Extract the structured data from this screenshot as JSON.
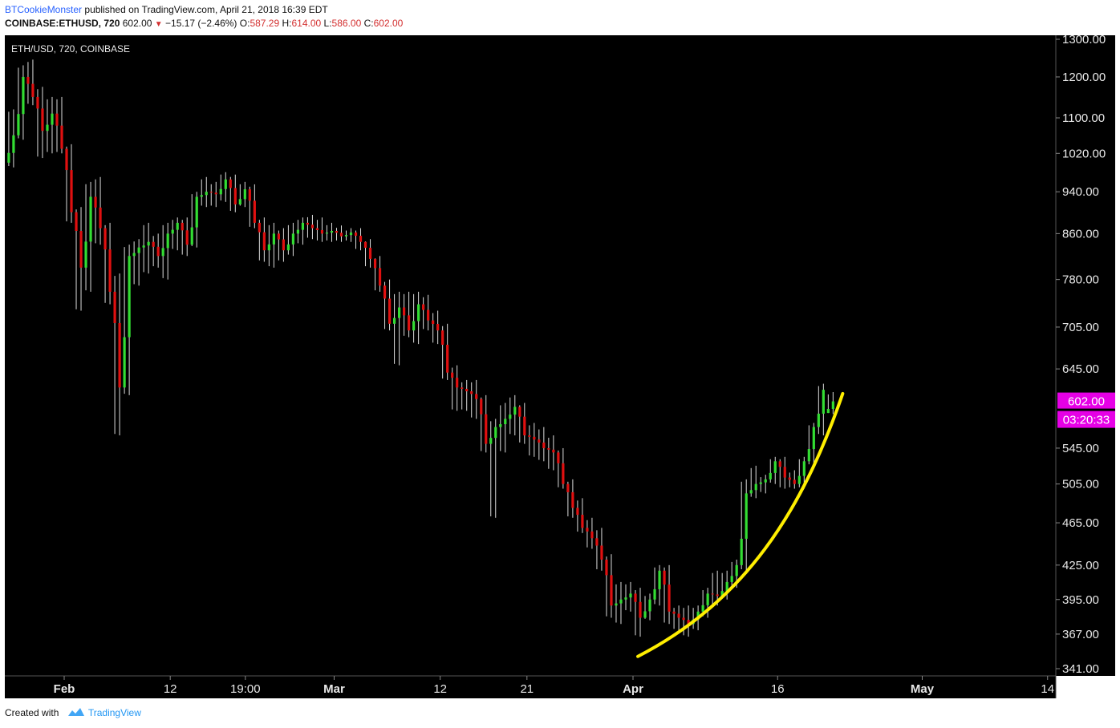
{
  "header": {
    "author": "BTCookieMonster",
    "published": "published on TradingView.com, April 21, 2018 16:39 EDT",
    "symbol": "COINBASE:ETHUSD, 720",
    "last": "602.00",
    "change": "−15.17 (−2.46%)",
    "o_label": "O:",
    "o": "587.29",
    "h_label": "H:",
    "h": "614.00",
    "l_label": "L:",
    "l": "586.00",
    "c_label": "C:",
    "c": "602.00"
  },
  "footer": {
    "created_with": "Created with",
    "brand": "TradingView"
  },
  "colors": {
    "background": "#000000",
    "up": "#33dd33",
    "down": "#e01010",
    "wick": "#dddddd",
    "trendline": "#ffee00",
    "price_tag": "#e600e6"
  },
  "chart_data": {
    "type": "candlestick",
    "title": "ETH/USD, 720, COINBASE",
    "y_scale": "log",
    "y_ticks": [
      "1300.00",
      "1200.00",
      "1100.00",
      "1020.00",
      "940.00",
      "860.00",
      "780.00",
      "705.00",
      "645.00",
      "545.00",
      "505.00",
      "465.00",
      "425.00",
      "395.00",
      "367.00",
      "341.00"
    ],
    "x_ticks": [
      {
        "label": "Feb",
        "date": "2018-02-01"
      },
      {
        "label": "12",
        "date": "2018-02-12"
      },
      {
        "label": "19:00",
        "date": "2018-02-19T19:00"
      },
      {
        "label": "Mar",
        "date": "2018-03-01"
      },
      {
        "label": "12",
        "date": "2018-03-12"
      },
      {
        "label": "21",
        "date": "2018-03-21"
      },
      {
        "label": "Apr",
        "date": "2018-04-01"
      },
      {
        "label": "16",
        "date": "2018-04-16"
      },
      {
        "label": "May",
        "date": "2018-05-01"
      },
      {
        "label": "14",
        "date": "2018-05-14"
      }
    ],
    "last_price_label": "602.00",
    "countdown_label": "03:20:33",
    "grid": false,
    "ohlc": [
      {
        "d": "2018-01-26",
        "o": 1000,
        "h": 1120,
        "l": 990,
        "c": 1060
      },
      {
        "d": "2018-01-27",
        "o": 1060,
        "h": 1230,
        "l": 1050,
        "c": 1200
      },
      {
        "d": "2018-01-28",
        "o": 1200,
        "h": 1245,
        "l": 1130,
        "c": 1150
      },
      {
        "d": "2018-01-29",
        "o": 1150,
        "h": 1175,
        "l": 1010,
        "c": 1070
      },
      {
        "d": "2018-01-30",
        "o": 1070,
        "h": 1150,
        "l": 1020,
        "c": 1110
      },
      {
        "d": "2018-01-31",
        "o": 1110,
        "h": 1150,
        "l": 1020,
        "c": 1030
      },
      {
        "d": "2018-02-01",
        "o": 1030,
        "h": 1040,
        "l": 880,
        "c": 900
      },
      {
        "d": "2018-02-02",
        "o": 900,
        "h": 910,
        "l": 730,
        "c": 800
      },
      {
        "d": "2018-02-03",
        "o": 800,
        "h": 960,
        "l": 760,
        "c": 930
      },
      {
        "d": "2018-02-04",
        "o": 930,
        "h": 970,
        "l": 840,
        "c": 870
      },
      {
        "d": "2018-02-05",
        "o": 870,
        "h": 880,
        "l": 740,
        "c": 760
      },
      {
        "d": "2018-02-06",
        "o": 760,
        "h": 790,
        "l": 560,
        "c": 620
      },
      {
        "d": "2018-02-07",
        "o": 620,
        "h": 840,
        "l": 610,
        "c": 820
      },
      {
        "d": "2018-02-08",
        "o": 820,
        "h": 850,
        "l": 770,
        "c": 835
      },
      {
        "d": "2018-02-09",
        "o": 835,
        "h": 880,
        "l": 790,
        "c": 845
      },
      {
        "d": "2018-02-10",
        "o": 845,
        "h": 860,
        "l": 800,
        "c": 820
      },
      {
        "d": "2018-02-11",
        "o": 820,
        "h": 880,
        "l": 780,
        "c": 860
      },
      {
        "d": "2018-02-12",
        "o": 860,
        "h": 890,
        "l": 830,
        "c": 880
      },
      {
        "d": "2018-02-13",
        "o": 880,
        "h": 890,
        "l": 820,
        "c": 840
      },
      {
        "d": "2018-02-14",
        "o": 840,
        "h": 940,
        "l": 835,
        "c": 930
      },
      {
        "d": "2018-02-15",
        "o": 930,
        "h": 970,
        "l": 910,
        "c": 940
      },
      {
        "d": "2018-02-16",
        "o": 940,
        "h": 960,
        "l": 910,
        "c": 935
      },
      {
        "d": "2018-02-17",
        "o": 935,
        "h": 980,
        "l": 920,
        "c": 965
      },
      {
        "d": "2018-02-18",
        "o": 965,
        "h": 975,
        "l": 900,
        "c": 915
      },
      {
        "d": "2018-02-19",
        "o": 915,
        "h": 960,
        "l": 910,
        "c": 945
      },
      {
        "d": "2018-02-20",
        "o": 945,
        "h": 955,
        "l": 870,
        "c": 880
      },
      {
        "d": "2018-02-21",
        "o": 880,
        "h": 890,
        "l": 810,
        "c": 830
      },
      {
        "d": "2018-02-22",
        "o": 830,
        "h": 880,
        "l": 800,
        "c": 860
      },
      {
        "d": "2018-02-23",
        "o": 860,
        "h": 870,
        "l": 810,
        "c": 830
      },
      {
        "d": "2018-02-24",
        "o": 830,
        "h": 880,
        "l": 820,
        "c": 860
      },
      {
        "d": "2018-02-25",
        "o": 860,
        "h": 890,
        "l": 840,
        "c": 880
      },
      {
        "d": "2018-02-26",
        "o": 880,
        "h": 895,
        "l": 850,
        "c": 870
      },
      {
        "d": "2018-02-27",
        "o": 870,
        "h": 890,
        "l": 845,
        "c": 860
      },
      {
        "d": "2018-02-28",
        "o": 860,
        "h": 880,
        "l": 845,
        "c": 865
      },
      {
        "d": "2018-03-01",
        "o": 865,
        "h": 875,
        "l": 845,
        "c": 855
      },
      {
        "d": "2018-03-02",
        "o": 855,
        "h": 870,
        "l": 845,
        "c": 862
      },
      {
        "d": "2018-03-03",
        "o": 862,
        "h": 870,
        "l": 830,
        "c": 845
      },
      {
        "d": "2018-03-04",
        "o": 845,
        "h": 850,
        "l": 800,
        "c": 815
      },
      {
        "d": "2018-03-05",
        "o": 815,
        "h": 820,
        "l": 760,
        "c": 770
      },
      {
        "d": "2018-03-06",
        "o": 770,
        "h": 780,
        "l": 700,
        "c": 710
      },
      {
        "d": "2018-03-07",
        "o": 710,
        "h": 760,
        "l": 650,
        "c": 735
      },
      {
        "d": "2018-03-08",
        "o": 735,
        "h": 760,
        "l": 690,
        "c": 700
      },
      {
        "d": "2018-03-09",
        "o": 700,
        "h": 760,
        "l": 680,
        "c": 740
      },
      {
        "d": "2018-03-10",
        "o": 740,
        "h": 755,
        "l": 700,
        "c": 715
      },
      {
        "d": "2018-03-11",
        "o": 715,
        "h": 730,
        "l": 680,
        "c": 700
      },
      {
        "d": "2018-03-12",
        "o": 700,
        "h": 710,
        "l": 630,
        "c": 640
      },
      {
        "d": "2018-03-13",
        "o": 640,
        "h": 650,
        "l": 590,
        "c": 620
      },
      {
        "d": "2018-03-14",
        "o": 620,
        "h": 630,
        "l": 590,
        "c": 615
      },
      {
        "d": "2018-03-15",
        "o": 615,
        "h": 630,
        "l": 580,
        "c": 605
      },
      {
        "d": "2018-03-16",
        "o": 605,
        "h": 610,
        "l": 540,
        "c": 550
      },
      {
        "d": "2018-03-17",
        "o": 550,
        "h": 580,
        "l": 470,
        "c": 570
      },
      {
        "d": "2018-03-18",
        "o": 570,
        "h": 600,
        "l": 540,
        "c": 580
      },
      {
        "d": "2018-03-19",
        "o": 580,
        "h": 610,
        "l": 560,
        "c": 595
      },
      {
        "d": "2018-03-20",
        "o": 595,
        "h": 600,
        "l": 550,
        "c": 560
      },
      {
        "d": "2018-03-21",
        "o": 560,
        "h": 575,
        "l": 535,
        "c": 555
      },
      {
        "d": "2018-03-22",
        "o": 555,
        "h": 570,
        "l": 530,
        "c": 545
      },
      {
        "d": "2018-03-23",
        "o": 545,
        "h": 560,
        "l": 520,
        "c": 540
      },
      {
        "d": "2018-03-24",
        "o": 540,
        "h": 545,
        "l": 500,
        "c": 505
      },
      {
        "d": "2018-03-25",
        "o": 505,
        "h": 510,
        "l": 470,
        "c": 480
      },
      {
        "d": "2018-03-26",
        "o": 480,
        "h": 490,
        "l": 455,
        "c": 460
      },
      {
        "d": "2018-03-27",
        "o": 460,
        "h": 470,
        "l": 440,
        "c": 450
      },
      {
        "d": "2018-03-28",
        "o": 450,
        "h": 460,
        "l": 420,
        "c": 430
      },
      {
        "d": "2018-03-29",
        "o": 430,
        "h": 435,
        "l": 380,
        "c": 390
      },
      {
        "d": "2018-03-30",
        "o": 390,
        "h": 410,
        "l": 375,
        "c": 395
      },
      {
        "d": "2018-03-31",
        "o": 395,
        "h": 410,
        "l": 385,
        "c": 400
      },
      {
        "d": "2018-04-01",
        "o": 400,
        "h": 405,
        "l": 365,
        "c": 380
      },
      {
        "d": "2018-04-02",
        "o": 380,
        "h": 400,
        "l": 378,
        "c": 395
      },
      {
        "d": "2018-04-03",
        "o": 395,
        "h": 425,
        "l": 390,
        "c": 420
      },
      {
        "d": "2018-04-04",
        "o": 420,
        "h": 425,
        "l": 375,
        "c": 385
      },
      {
        "d": "2018-04-05",
        "o": 385,
        "h": 390,
        "l": 370,
        "c": 380
      },
      {
        "d": "2018-04-06",
        "o": 380,
        "h": 390,
        "l": 365,
        "c": 375
      },
      {
        "d": "2018-04-07",
        "o": 375,
        "h": 390,
        "l": 370,
        "c": 385
      },
      {
        "d": "2018-04-08",
        "o": 385,
        "h": 405,
        "l": 380,
        "c": 400
      },
      {
        "d": "2018-04-09",
        "o": 400,
        "h": 420,
        "l": 390,
        "c": 398
      },
      {
        "d": "2018-04-10",
        "o": 398,
        "h": 420,
        "l": 395,
        "c": 410
      },
      {
        "d": "2018-04-11",
        "o": 410,
        "h": 430,
        "l": 405,
        "c": 425
      },
      {
        "d": "2018-04-12",
        "o": 425,
        "h": 510,
        "l": 420,
        "c": 495
      },
      {
        "d": "2018-04-13",
        "o": 495,
        "h": 525,
        "l": 490,
        "c": 505
      },
      {
        "d": "2018-04-14",
        "o": 505,
        "h": 515,
        "l": 495,
        "c": 510
      },
      {
        "d": "2018-04-15",
        "o": 510,
        "h": 535,
        "l": 505,
        "c": 530
      },
      {
        "d": "2018-04-16",
        "o": 530,
        "h": 535,
        "l": 500,
        "c": 512
      },
      {
        "d": "2018-04-17",
        "o": 512,
        "h": 520,
        "l": 500,
        "c": 505
      },
      {
        "d": "2018-04-18",
        "o": 505,
        "h": 535,
        "l": 500,
        "c": 530
      },
      {
        "d": "2018-04-19",
        "o": 530,
        "h": 575,
        "l": 525,
        "c": 570
      },
      {
        "d": "2018-04-20",
        "o": 570,
        "h": 625,
        "l": 560,
        "c": 617
      },
      {
        "d": "2018-04-21",
        "o": 587.29,
        "h": 614,
        "l": 586,
        "c": 602
      }
    ],
    "annotations": [
      {
        "type": "trendline",
        "shape": "curve",
        "color": "#ffee00",
        "points": [
          [
            "2018-04-01T12:00",
            350
          ],
          [
            "2018-04-12",
            393
          ],
          [
            "2018-04-18",
            475
          ],
          [
            "2018-04-22T18:00",
            612
          ]
        ]
      }
    ]
  }
}
